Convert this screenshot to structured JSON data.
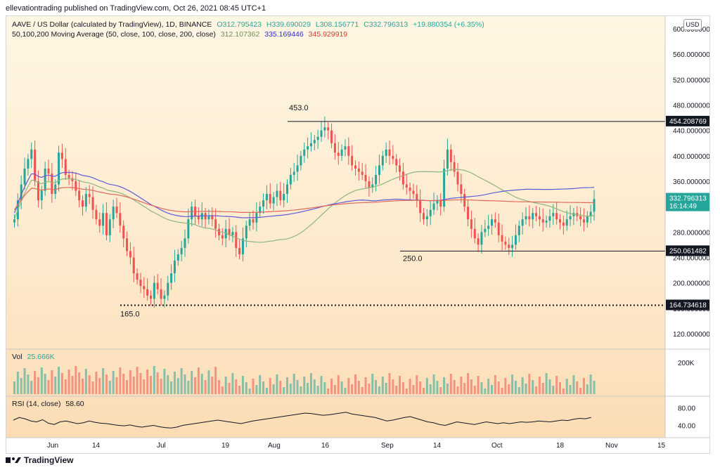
{
  "header": {
    "publisher_line": "ellevationtrading published on TradingView.com, Oct 26, 2021 08:45 UTC+1"
  },
  "legend": {
    "symbol": "AAVE / US Dollar (calculated by TradingView), 1D, BINANCE",
    "open": "O312.795423",
    "high": "H339.690029",
    "low": "L308.156771",
    "close": "C332.796313",
    "change": "+19.880354 (+6.35%)",
    "ma_label": "50,100,200 Moving Average (50, close, 100, close, 200, close)",
    "ma50": "312.107362",
    "ma100": "335.169446",
    "ma200": "345.929919",
    "vol_label": "Vol",
    "vol_value": "25.666K",
    "rsi_label": "RSI (14, close)",
    "rsi_value": "58.60"
  },
  "toolbar": {
    "currency_button": "USD"
  },
  "price_axis": {
    "ticks": [
      "600.000000",
      "560.000000",
      "520.000000",
      "480.000000",
      "440.000000",
      "400.000000",
      "360.000000",
      "320.000000",
      "280.000000",
      "240.000000",
      "200.000000",
      "160.000000",
      "120.000000"
    ]
  },
  "price_tags": {
    "resistance": "454.208769",
    "current": "332.796313",
    "countdown": "16:14:49",
    "support": "250.061482",
    "low_support": "164.734618"
  },
  "annotations": {
    "top": "453.0",
    "mid": "250.0",
    "low": "165.0"
  },
  "volume_axis": {
    "tick": "200K"
  },
  "rsi_axis": {
    "ticks": [
      "80.00",
      "40.00"
    ]
  },
  "time_axis": {
    "labels": [
      "Jun",
      "14",
      "Jul",
      "19",
      "Aug",
      "16",
      "Sep",
      "14",
      "Oct",
      "18",
      "Nov",
      "15"
    ]
  },
  "footer": {
    "brand": "TradingView"
  },
  "colors": {
    "up": "#26a69a",
    "down": "#ef5350",
    "ma50": "#8fb57f",
    "ma100": "#5b5bd6",
    "ma200": "#e06a5a"
  },
  "chart_data": {
    "type": "candlestick",
    "title": "AAVE / US Dollar (calculated by TradingView), 1D, BINANCE",
    "ylabel": "USD",
    "ylim": [
      100,
      620
    ],
    "levels": [
      454.2,
      250.06,
      164.73
    ],
    "closes": [
      300,
      330,
      355,
      380,
      395,
      410,
      360,
      330,
      345,
      380,
      372,
      340,
      355,
      405,
      395,
      370,
      365,
      360,
      345,
      330,
      320,
      340,
      335,
      315,
      300,
      290,
      310,
      275,
      300,
      320,
      310,
      290,
      270,
      250,
      240,
      215,
      205,
      195,
      190,
      180,
      175,
      200,
      190,
      175,
      180,
      200,
      215,
      235,
      245,
      255,
      270,
      300,
      320,
      305,
      300,
      310,
      300,
      305,
      300,
      285,
      275,
      270,
      285,
      275,
      280,
      255,
      245,
      270,
      290,
      300,
      295,
      310,
      320,
      330,
      340,
      325,
      335,
      345,
      330,
      340,
      355,
      370,
      375,
      385,
      400,
      410,
      415,
      420,
      425,
      430,
      440,
      445,
      440,
      420,
      405,
      400,
      410,
      415,
      400,
      385,
      380,
      375,
      370,
      360,
      350,
      355,
      370,
      385,
      400,
      410,
      400,
      395,
      385,
      375,
      355,
      350,
      345,
      340,
      330,
      310,
      300,
      305,
      315,
      325,
      330,
      320,
      380,
      410,
      390,
      375,
      355,
      340,
      320,
      300,
      285,
      270,
      260,
      280,
      285,
      290,
      300,
      295,
      275,
      265,
      260,
      255,
      260,
      275,
      290,
      300,
      305,
      300,
      310,
      305,
      300,
      295,
      298,
      305,
      310,
      300,
      295,
      290,
      300,
      305,
      310,
      305,
      300,
      295,
      305,
      312,
      332
    ],
    "rsi": [
      52,
      58,
      55,
      50,
      48,
      53,
      45,
      42,
      48,
      50,
      47,
      44,
      46,
      50,
      47,
      45,
      44,
      42,
      40,
      39,
      41,
      38,
      36,
      38,
      40,
      37,
      35,
      34,
      36,
      40,
      42,
      44,
      46,
      48,
      50,
      52,
      50,
      48,
      46,
      44,
      47,
      50,
      52,
      54,
      56,
      58,
      60,
      62,
      64,
      66,
      68,
      67,
      65,
      63,
      64,
      66,
      68,
      70,
      66,
      64,
      62,
      60,
      58,
      54,
      50,
      52,
      55,
      58,
      60,
      56,
      52,
      48,
      46,
      42,
      40,
      44,
      48,
      46,
      44,
      42,
      45,
      48,
      46,
      44,
      46,
      44,
      46,
      48,
      47,
      48,
      50,
      49,
      48,
      50,
      52,
      51,
      54,
      56,
      55,
      58
    ]
  }
}
